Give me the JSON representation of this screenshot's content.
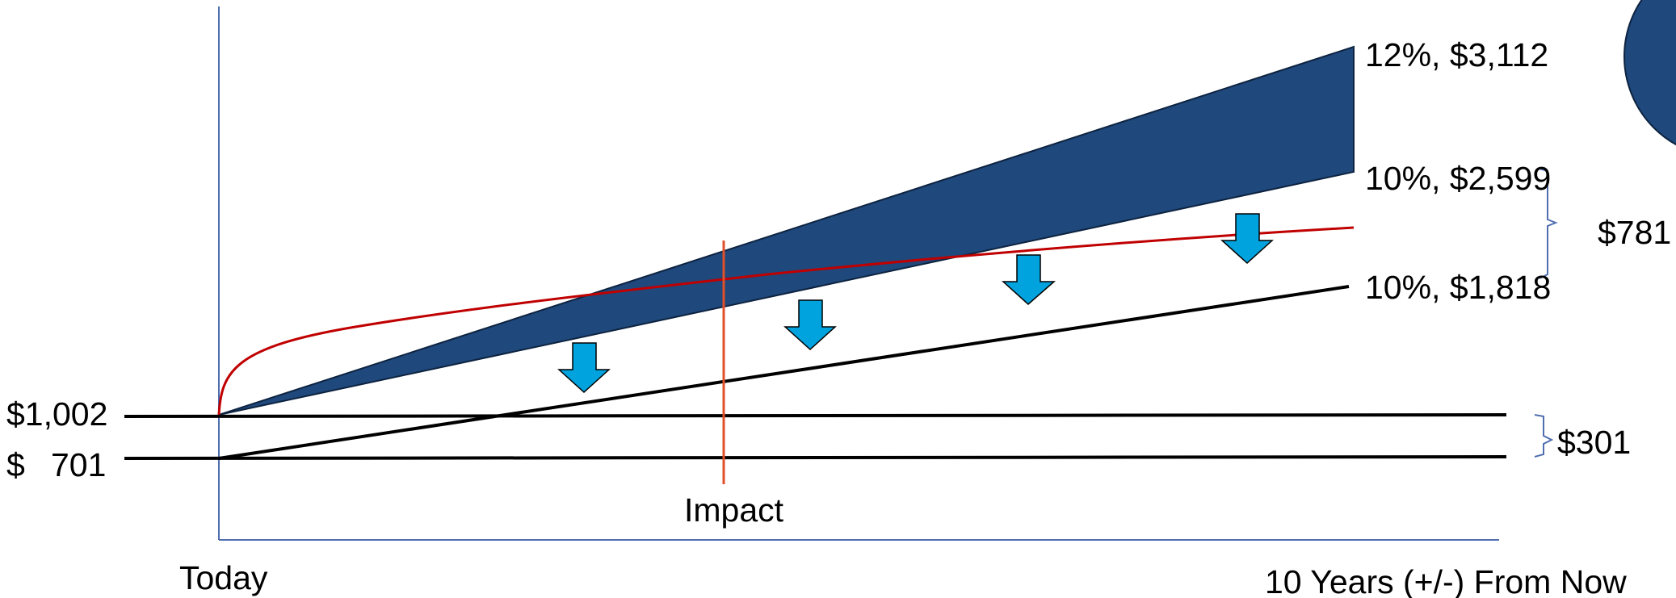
{
  "labels": {
    "high_12": "12%, $3,112",
    "mid_10": "10%, $2,599",
    "low_10": "10%, $1,818",
    "gap_top": "$781",
    "gap_bottom": "$301",
    "start_high": "$1,002",
    "start_low_symbol": "$",
    "start_low_value": "701",
    "impact": "Impact",
    "x_start": "Today",
    "x_end": "10 Years (+/-) From Now"
  },
  "colors": {
    "band_fill": "#1F487C",
    "impact_curve": "#C00000",
    "impact_line": "#E0502A",
    "arrow_fill": "#00A3DD",
    "axis": "#4F6EB0",
    "lines": "#000000"
  },
  "icons": [
    "down-arrow-icon",
    "down-arrow-icon",
    "down-arrow-icon",
    "down-arrow-icon"
  ]
}
